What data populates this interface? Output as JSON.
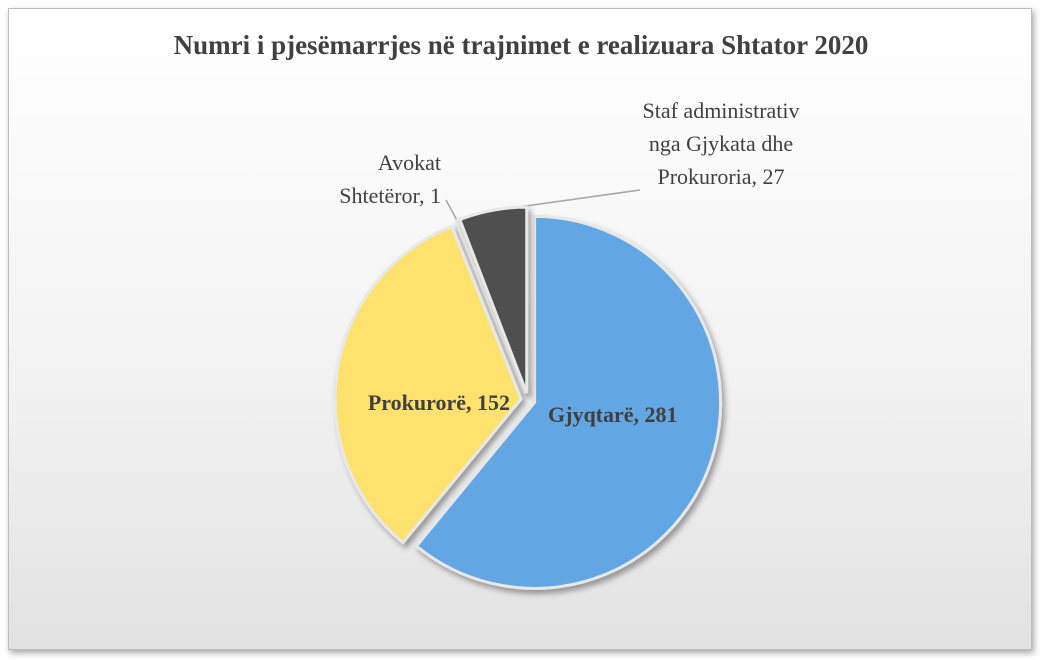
{
  "chart_data": {
    "type": "pie",
    "title": "Numri i pjesëmarrjes në trajnimet e realizuara Shtator 2020",
    "values": [
      281,
      152,
      1,
      27
    ],
    "value_labels": [
      "Gjyqtarë, 281",
      "Prokurorë, 152",
      "Avokat Shtetëror, 1",
      "Staf administrativ nga Gjykata dhe Prokuroria, 27"
    ],
    "colors": [
      "#62a6e3",
      "#ffe16e",
      "#d9d9d9",
      "#4f4f4f"
    ]
  }
}
